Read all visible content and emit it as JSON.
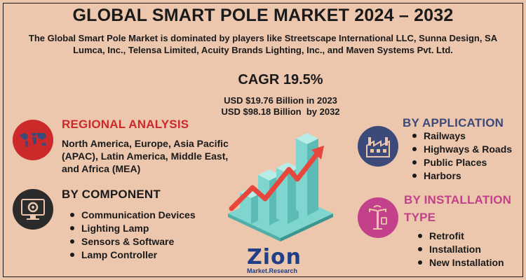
{
  "header": {
    "title": "GLOBAL SMART POLE MARKET 2024 – 2032",
    "subtitle": "The Global Smart Pole Market is dominated by players like Streetscape International LLC, Sunna Design, SA Lumca, Inc., Telensa Limited, Acuity Brands Lighting, Inc., and Maven Systems Pvt. Ltd."
  },
  "center": {
    "cagr": "CAGR 19.5%",
    "usd_2023": "USD $19.76 Billion in 2023",
    "usd_2032": "USD $98.18 Billion  by 2032"
  },
  "regional": {
    "title": "REGIONAL ANALYSIS",
    "text": "North America, Europe, Asia Pacific (APAC), Latin America, Middle East, and Africa (MEA)",
    "icon": "world-map-icon"
  },
  "component": {
    "title": "BY COMPONENT",
    "icon": "gear-monitor-icon",
    "items": [
      "Communication Devices",
      "Lighting Lamp",
      "Sensors & Software",
      "Lamp Controller"
    ]
  },
  "application": {
    "title": "BY APPLICATION",
    "icon": "factory-icon",
    "items": [
      "Railways",
      "Highways & Roads",
      "Public Places",
      "Harbors"
    ]
  },
  "installation": {
    "title_line1": "BY INSTALLATION",
    "title_line2": "TYPE",
    "icon": "smart-pole-icon",
    "items": [
      "Retrofit",
      "Installation",
      "New Installation"
    ]
  },
  "logo": {
    "main": "Zion",
    "sub": "Market.Research"
  },
  "colors": {
    "background": "#ecc6ad",
    "red": "#cc2a2a",
    "navy": "#3c4a7a",
    "pink": "#c2418a",
    "dark": "#2b2b2b",
    "teal": "#7fd6cf",
    "arrow": "#e8463c"
  }
}
